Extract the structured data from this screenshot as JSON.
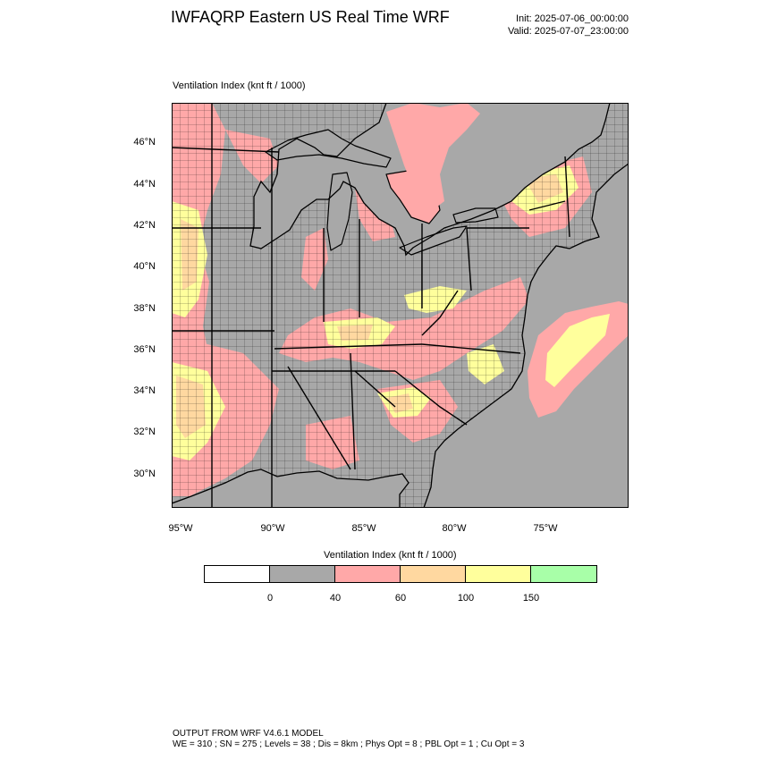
{
  "header": {
    "title": "IWFAQRP Eastern US Real Time WRF",
    "init": "Init: 2025-07-06_00:00:00",
    "valid": "Valid: 2025-07-07_23:00:00"
  },
  "field_label": "Ventilation Index   (knt ft / 1000)",
  "axes": {
    "lat_labels": [
      "46°N",
      "44°N",
      "42°N",
      "40°N",
      "38°N",
      "36°N",
      "34°N",
      "32°N",
      "30°N"
    ],
    "lon_labels": [
      "95°W",
      "90°W",
      "85°W",
      "80°W",
      "75°W"
    ]
  },
  "legend": {
    "title": "Ventilation Index  (knt ft / 1000)",
    "colors": [
      "#ffffff",
      "#a8a8a8",
      "#ffa8a8",
      "#ffd8a0",
      "#ffff9c",
      "#a8ffa8"
    ],
    "labels": [
      "0",
      "40",
      "60",
      "100",
      "150"
    ]
  },
  "colors": {
    "ocean": "#a8a8a8",
    "land_low": "#a8a8a8",
    "band_40_60": "#ffa8a8",
    "band_60_100": "#ffd8a0",
    "band_100_150": "#ffff9c",
    "lake_fill": "#ffa8a8"
  },
  "footer": {
    "line1": "OUTPUT FROM WRF V4.6.1 MODEL",
    "line2": "WE = 310 ; SN = 275 ; Levels = 38 ; Dis = 8km ; Phys Opt = 8 ; PBL Opt = 1 ; Cu Opt = 3"
  }
}
